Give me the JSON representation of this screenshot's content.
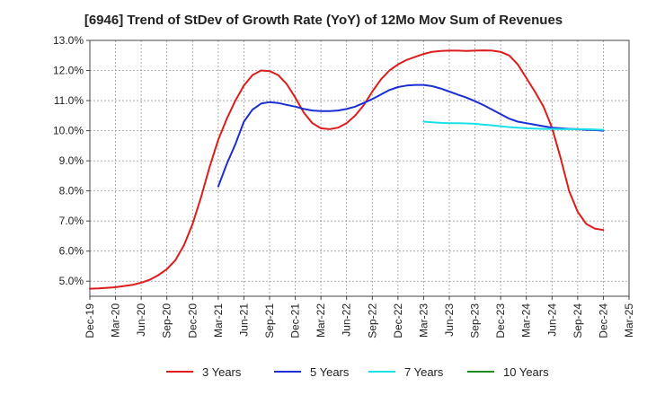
{
  "chart_data": {
    "type": "line",
    "title": "[6946]  Trend of StDev of Growth Rate (YoY) of 12Mo Mov Sum of Revenues",
    "xlabel": "",
    "ylabel": "",
    "ylim": [
      4.5,
      13.0
    ],
    "yticks": [
      "5.0%",
      "6.0%",
      "7.0%",
      "8.0%",
      "9.0%",
      "10.0%",
      "11.0%",
      "12.0%",
      "13.0%"
    ],
    "ytick_values": [
      5,
      6,
      7,
      8,
      9,
      10,
      11,
      12,
      13
    ],
    "xticks": [
      "Dec-19",
      "Mar-20",
      "Jun-20",
      "Sep-20",
      "Dec-20",
      "Mar-21",
      "Jun-21",
      "Sep-21",
      "Dec-21",
      "Mar-22",
      "Jun-22",
      "Sep-22",
      "Dec-22",
      "Mar-23",
      "Jun-23",
      "Sep-23",
      "Dec-23",
      "Mar-24",
      "Jun-24",
      "Sep-24",
      "Dec-24",
      "Mar-25"
    ],
    "grid": true,
    "legend_position": "bottom",
    "series": [
      {
        "name": "3 Years",
        "color": "#dd1c1c",
        "x": [
          0,
          1,
          2,
          3,
          4,
          5,
          6,
          7,
          8,
          9,
          10,
          11,
          12,
          13,
          14,
          15,
          16,
          17,
          18,
          19,
          20,
          21,
          22,
          23,
          24,
          25,
          26,
          27,
          28,
          29,
          30,
          31,
          32,
          33,
          34,
          35,
          36,
          37,
          38,
          39,
          40,
          41,
          42,
          43,
          44,
          45,
          46,
          47,
          48,
          49,
          50,
          51,
          52,
          53,
          54,
          55,
          56,
          57,
          58,
          59,
          60
        ],
        "values": [
          4.75,
          4.76,
          4.78,
          4.8,
          4.84,
          4.88,
          4.95,
          5.05,
          5.2,
          5.4,
          5.7,
          6.2,
          6.9,
          7.8,
          8.8,
          9.7,
          10.4,
          11.0,
          11.5,
          11.85,
          12.0,
          11.98,
          11.85,
          11.55,
          11.1,
          10.6,
          10.25,
          10.08,
          10.05,
          10.1,
          10.25,
          10.5,
          10.85,
          11.3,
          11.7,
          12.0,
          12.2,
          12.35,
          12.45,
          12.55,
          12.62,
          12.65,
          12.66,
          12.66,
          12.65,
          12.66,
          12.67,
          12.66,
          12.62,
          12.5,
          12.2,
          11.75,
          11.3,
          10.8,
          10.1,
          9.1,
          8.0,
          7.3,
          6.9,
          6.75,
          6.7
        ]
      },
      {
        "name": "5 Years",
        "color": "#1c2ed4",
        "x": [
          15,
          16,
          17,
          18,
          19,
          20,
          21,
          22,
          23,
          24,
          25,
          26,
          27,
          28,
          29,
          30,
          31,
          32,
          33,
          34,
          35,
          36,
          37,
          38,
          39,
          40,
          41,
          42,
          43,
          44,
          45,
          46,
          47,
          48,
          49,
          50,
          51,
          52,
          53,
          54,
          55,
          56,
          57,
          58,
          59,
          60
        ],
        "values": [
          8.15,
          8.9,
          9.55,
          10.3,
          10.7,
          10.9,
          10.95,
          10.92,
          10.86,
          10.8,
          10.72,
          10.67,
          10.65,
          10.65,
          10.67,
          10.72,
          10.8,
          10.92,
          11.05,
          11.2,
          11.35,
          11.45,
          11.5,
          11.52,
          11.52,
          11.48,
          11.4,
          11.3,
          11.2,
          11.1,
          10.98,
          10.85,
          10.7,
          10.55,
          10.4,
          10.3,
          10.25,
          10.2,
          10.15,
          10.1,
          10.08,
          10.06,
          10.05,
          10.03,
          10.02,
          10.0
        ]
      },
      {
        "name": "7 Years",
        "color": "#1be0e8",
        "x": [
          39,
          40,
          41,
          42,
          43,
          44,
          45,
          46,
          47,
          48,
          49,
          50,
          51,
          52,
          53,
          54,
          55,
          56,
          57,
          58,
          59,
          60
        ],
        "values": [
          10.3,
          10.28,
          10.26,
          10.25,
          10.25,
          10.24,
          10.23,
          10.2,
          10.18,
          10.15,
          10.12,
          10.1,
          10.08,
          10.07,
          10.06,
          10.06,
          10.05,
          10.05,
          10.05,
          10.05,
          10.04,
          10.03
        ]
      },
      {
        "name": "10 Years",
        "color": "#1f8a1f",
        "x": [],
        "values": []
      }
    ]
  }
}
